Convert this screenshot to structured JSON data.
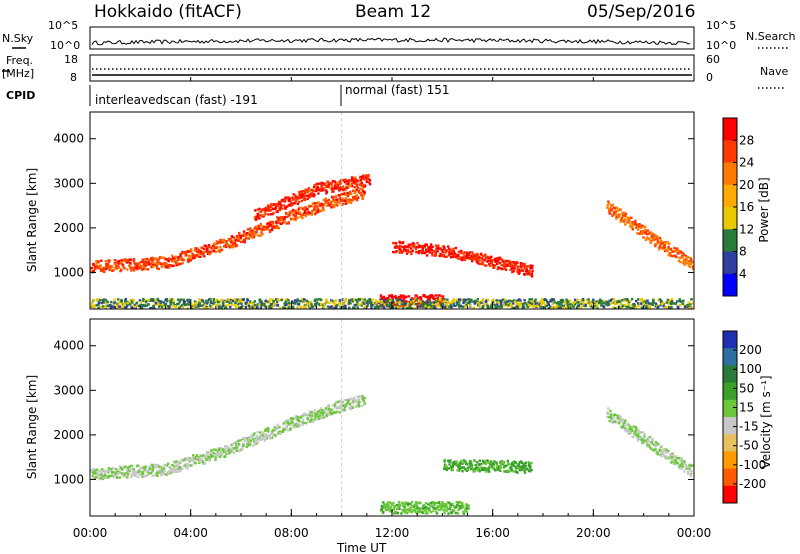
{
  "header": {
    "radar": "Hokkaido (fitACF)",
    "beam": "Beam 12",
    "date": "05/Sep/2016"
  },
  "top_strips": {
    "nsky_label": "N.Sky",
    "nsearch_label": "N.Search",
    "freq_label_1": "Freq.",
    "freq_label_2": "[MHz]",
    "nave_label": "Nave",
    "cpid_label": "CPID",
    "noise_left_ticks": [
      "10^5",
      "10^0"
    ],
    "noise_right_ticks": [
      "10^5",
      "10^0"
    ],
    "freq_left_ticks": [
      "18",
      "8"
    ],
    "nave_right_ticks": [
      "60",
      "0"
    ],
    "cpid_1": "interleavedscan (fast) -191",
    "cpid_2": "normal (fast) 151"
  },
  "power_colorbar": {
    "label": "Power [dB]",
    "ticks": [
      "28",
      "24",
      "20",
      "16",
      "12",
      "8",
      "4"
    ],
    "colors": [
      "#ff0000",
      "#ff3a00",
      "#ff7a00",
      "#ffaa00",
      "#e8c800",
      "#2a7a3a",
      "#2f3fa0",
      "#0000ff"
    ]
  },
  "velocity_colorbar": {
    "label": "Velocity [m s⁻¹]",
    "ticks": [
      "200",
      "100",
      "50",
      "15",
      "-15",
      "-50",
      "-100",
      "-200"
    ],
    "colors": [
      "#1e2fb0",
      "#2d70a0",
      "#2a7a3a",
      "#3aa02a",
      "#6cc83a",
      "#c8c8c8",
      "#e8c060",
      "#ff9a00",
      "#ff5a00",
      "#ff0000"
    ]
  },
  "chart_data": [
    {
      "type": "heatmap",
      "title": "Power",
      "ylabel": "Slant Range [km]",
      "xlabel": "Time UT",
      "x_ticks": [
        "00:00",
        "04:00",
        "08:00",
        "12:00",
        "16:00",
        "20:00",
        "00:00"
      ],
      "y_ticks": [
        "4000",
        "3000",
        "2000",
        "1000"
      ],
      "xlim_hours": [
        0,
        24
      ],
      "ylim_km": [
        180,
        4600
      ],
      "colorbar_range": [
        0,
        30
      ],
      "echo_bands": [
        {
          "t": [
            0.0,
            3.0,
            5.5,
            8.0,
            9.5,
            10.8
          ],
          "km": [
            1150,
            1250,
            1700,
            2300,
            2600,
            2800
          ],
          "value": 24
        },
        {
          "t": [
            6.5,
            9.0,
            11.0
          ],
          "km": [
            2300,
            2900,
            3100
          ],
          "value": 26
        },
        {
          "t": [
            12.0,
            14.0,
            16.0,
            17.5
          ],
          "km": [
            1600,
            1500,
            1250,
            1050
          ],
          "value": 27
        },
        {
          "t": [
            11.5,
            14.0
          ],
          "km": [
            390,
            390
          ],
          "value": 30
        },
        {
          "t": [
            20.5,
            22.5,
            24.0
          ],
          "km": [
            2500,
            1700,
            1150
          ],
          "value": 22
        },
        {
          "t": [
            0.0,
            24.0
          ],
          "km": [
            300,
            300
          ],
          "value": 10
        }
      ]
    },
    {
      "type": "heatmap",
      "title": "Velocity",
      "ylabel": "Slant Range [km]",
      "xlabel": "Time UT",
      "x_ticks": [
        "00:00",
        "04:00",
        "08:00",
        "12:00",
        "16:00",
        "20:00",
        "00:00"
      ],
      "y_ticks": [
        "4000",
        "3000",
        "2000",
        "1000"
      ],
      "xlim_hours": [
        0,
        24
      ],
      "ylim_km": [
        180,
        4600
      ],
      "colorbar_range": [
        -250,
        250
      ],
      "echo_bands": [
        {
          "t": [
            0.0,
            3.0,
            5.5,
            8.0,
            9.5,
            10.8
          ],
          "km": [
            1150,
            1250,
            1700,
            2300,
            2600,
            2800
          ],
          "value": 0
        },
        {
          "t": [
            14.0,
            17.5
          ],
          "km": [
            1350,
            1300
          ],
          "value": 60
        },
        {
          "t": [
            11.5,
            15.0
          ],
          "km": [
            390,
            390
          ],
          "value": 40
        },
        {
          "t": [
            20.5,
            22.5,
            24.0
          ],
          "km": [
            2500,
            1700,
            1150
          ],
          "value": 0
        }
      ]
    }
  ]
}
